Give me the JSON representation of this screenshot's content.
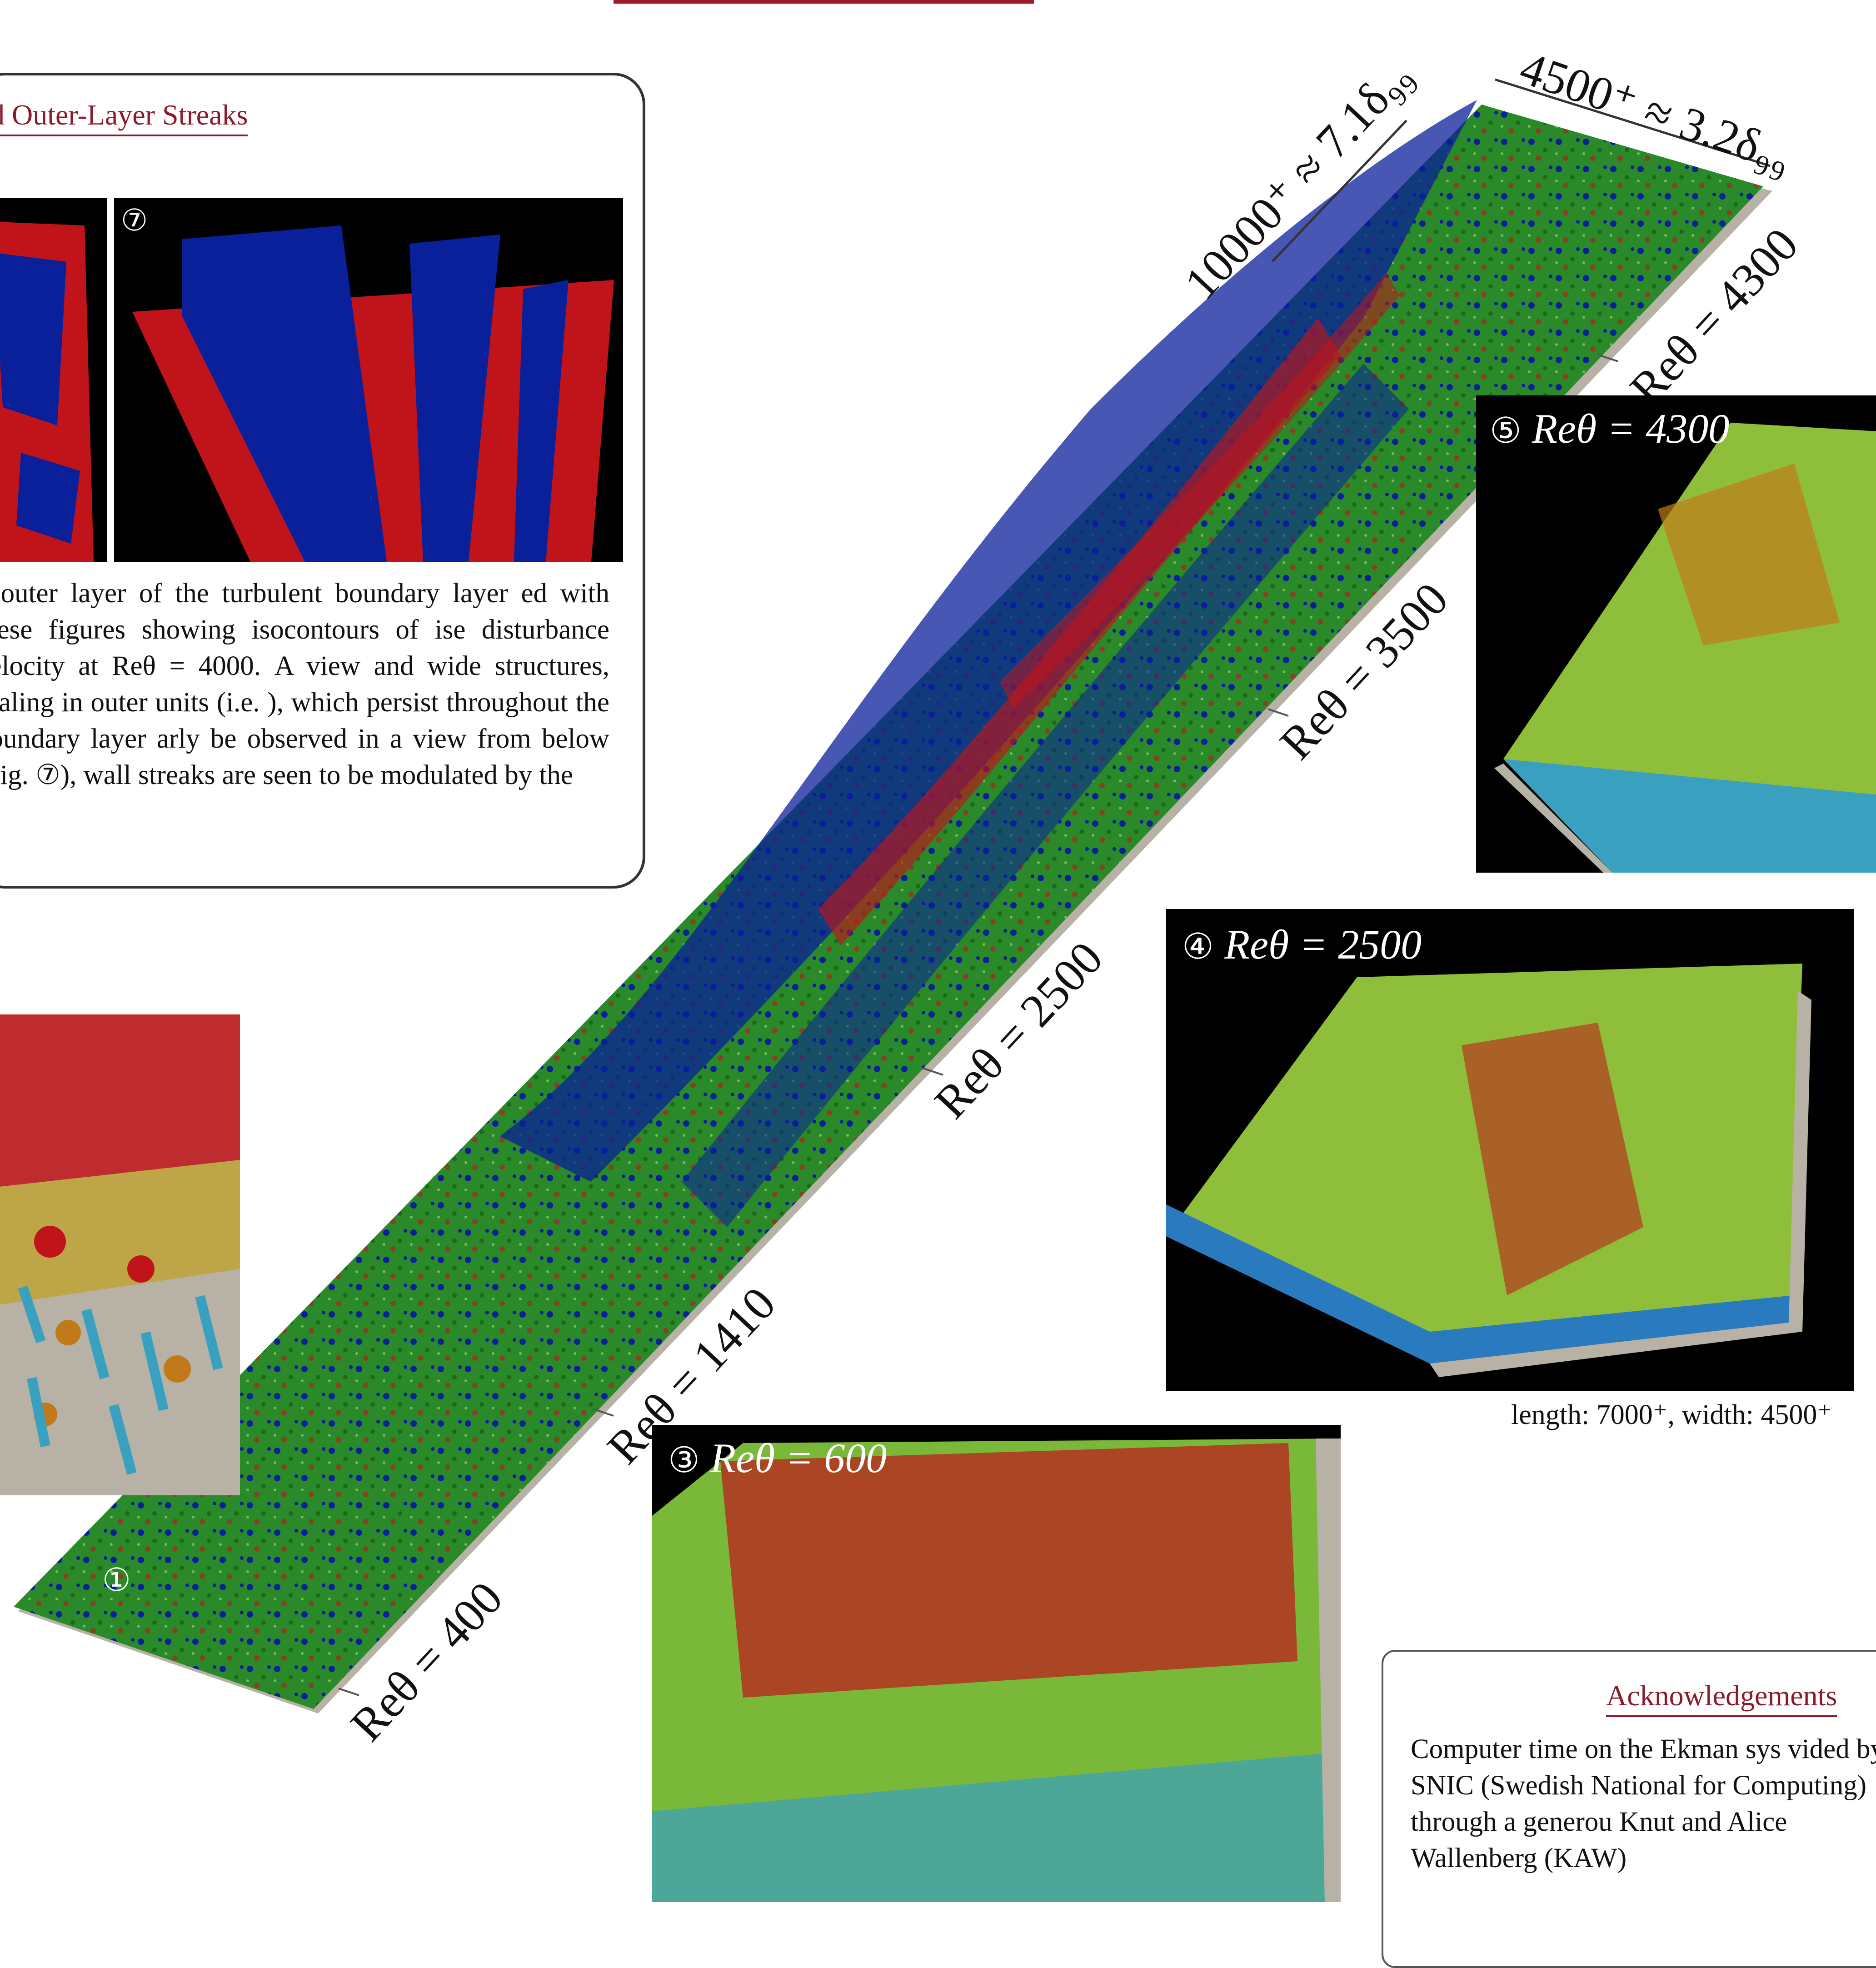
{
  "streak_section": {
    "title": "nd Outer-Layer Streaks",
    "panel6_label": "",
    "panel7_label": "⑦",
    "caption": "e outer layer of the turbulent boundary layer ed with these figures showing isocontours of ise disturbance velocity at Reθ = 4000. A view and wide structures, scaling in outer units (i.e. ), which persist throughout the boundary layer arly be observed in a view from below (Fig. ⑦), wall streaks are seen to be modulated by the"
  },
  "strip": {
    "top_width_label": "4500⁺ ≈ 3.2δ₉₉",
    "top_length_label": "10000⁺ ≈ 7.1δ₉₉",
    "re_labels": [
      "Reθ = 4300",
      "Reθ = 3500",
      "Reθ = 2500",
      "Reθ = 1410",
      "Reθ = 400"
    ],
    "start_marker": "①",
    "colors": {
      "green": "#2a8a2a",
      "blue": "#0a1f9a",
      "red": "#c0141a",
      "plate": "#b8b2a6"
    }
  },
  "insets": {
    "inset5": {
      "num": "⑤",
      "label": "Reθ = 4300"
    },
    "inset4": {
      "num": "④",
      "label": "Reθ = 2500"
    },
    "inset3": {
      "num": "③",
      "label": "Reθ = 600"
    }
  },
  "size_caption": "length: 7000⁺, width: 4500⁺",
  "acknowledgements": {
    "title": "Acknowledgements",
    "text": "Computer time on the Ekman sys vided by SNIC (Swedish National for Computing) through a generou Knut and Alice Wallenberg (KAW)"
  },
  "accent_color": "#8b1a2b"
}
